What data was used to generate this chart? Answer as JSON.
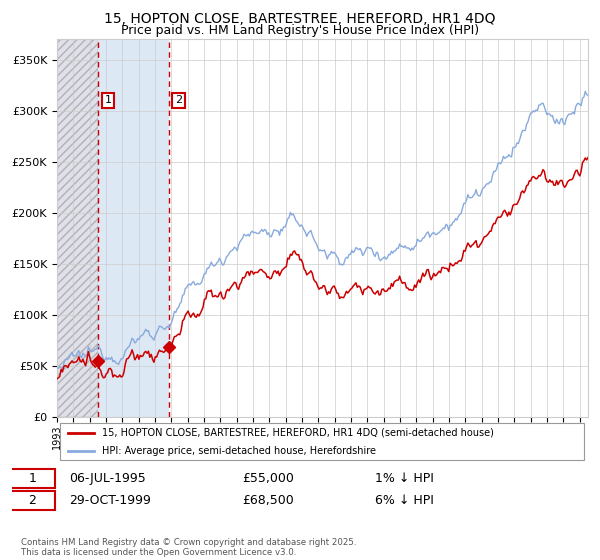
{
  "title": "15, HOPTON CLOSE, BARTESTREE, HEREFORD, HR1 4DQ",
  "subtitle": "Price paid vs. HM Land Registry's House Price Index (HPI)",
  "ylim": [
    0,
    370000
  ],
  "yticks": [
    0,
    50000,
    100000,
    150000,
    200000,
    250000,
    300000,
    350000
  ],
  "ytick_labels": [
    "£0",
    "£50K",
    "£100K",
    "£150K",
    "£200K",
    "£250K",
    "£300K",
    "£350K"
  ],
  "legend_line1": "15, HOPTON CLOSE, BARTESTREE, HEREFORD, HR1 4DQ (semi-detached house)",
  "legend_line2": "HPI: Average price, semi-detached house, Herefordshire",
  "table_row1": [
    "1",
    "06-JUL-1995",
    "£55,000",
    "1% ↓ HPI"
  ],
  "table_row2": [
    "2",
    "29-OCT-1999",
    "£68,500",
    "6% ↓ HPI"
  ],
  "footer": "Contains HM Land Registry data © Crown copyright and database right 2025.\nThis data is licensed under the Open Government Licence v3.0.",
  "price_color": "#cc0000",
  "hpi_color": "#88aadd",
  "purchase1_date": 1995.51,
  "purchase1_price": 55000,
  "purchase2_date": 1999.83,
  "purchase2_price": 68500,
  "hatch_color": "#e0e0e8",
  "shade_color": "#dde8f5",
  "grid_color": "#cccccc",
  "title_fontsize": 10,
  "subtitle_fontsize": 9,
  "tick_fontsize": 8
}
